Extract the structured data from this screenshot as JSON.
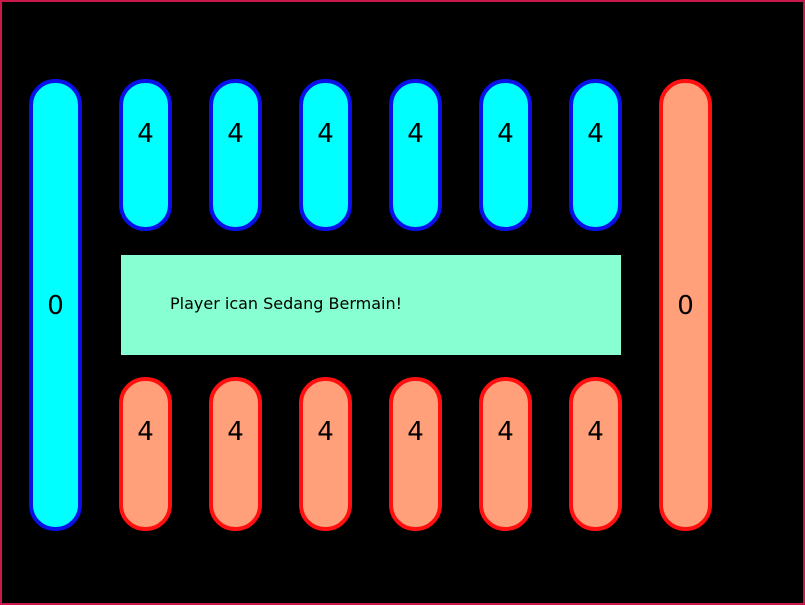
{
  "stores": {
    "left": {
      "count": "0",
      "color": "#00ffff",
      "border": "#0a10e8"
    },
    "right": {
      "count": "0",
      "color": "#ffa07a",
      "border": "#ff1010"
    }
  },
  "top_pits": [
    {
      "count": "4"
    },
    {
      "count": "4"
    },
    {
      "count": "4"
    },
    {
      "count": "4"
    },
    {
      "count": "4"
    },
    {
      "count": "4"
    }
  ],
  "bottom_pits": [
    {
      "count": "4"
    },
    {
      "count": "4"
    },
    {
      "count": "4"
    },
    {
      "count": "4"
    },
    {
      "count": "4"
    },
    {
      "count": "4"
    }
  ],
  "status": {
    "message": "Player ican Sedang Bermain!",
    "background": "#88ffd2"
  },
  "board": {
    "background": "#000000",
    "border": "#c8194b"
  }
}
